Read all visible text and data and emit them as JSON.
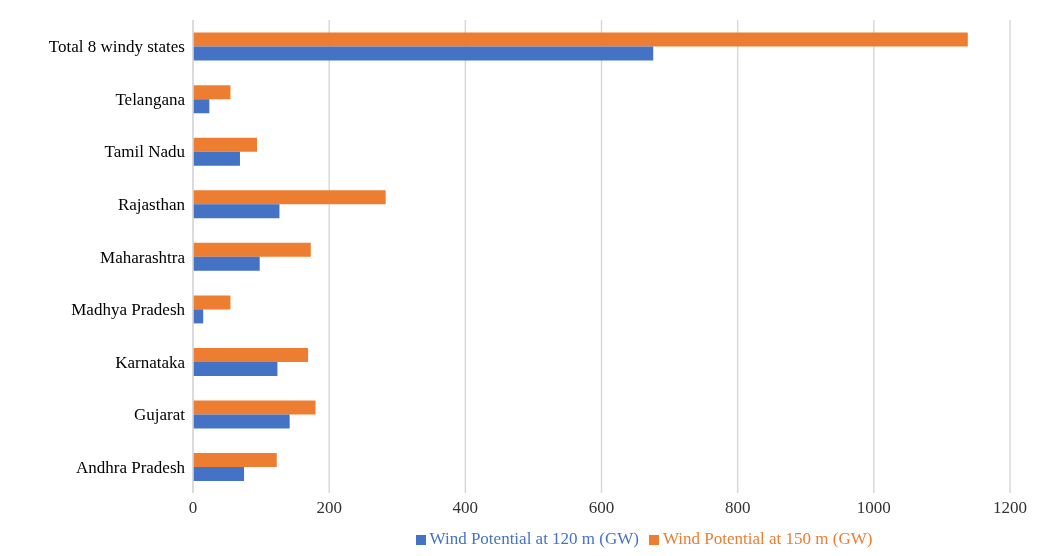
{
  "chart_data": {
    "type": "bar",
    "orientation": "horizontal",
    "categories": [
      "Total 8 windy states",
      "Telangana",
      "Tamil Nadu",
      "Rajasthan",
      "Maharashtra",
      "Madhya Pradesh",
      "Karnataka",
      "Gujarat",
      "Andhra Pradesh"
    ],
    "series": [
      {
        "name": "Wind Potential at 150 m (GW)",
        "color": "#ed7d31",
        "values": [
          1138,
          55,
          94,
          283,
          173,
          55,
          169,
          180,
          123
        ]
      },
      {
        "name": "Wind Potential at 120 m (GW)",
        "color": "#4472c4",
        "values": [
          676,
          24,
          69,
          127,
          98,
          15,
          124,
          142,
          75
        ]
      }
    ],
    "xlim": [
      0,
      1200
    ],
    "xticks": [
      0,
      200,
      400,
      600,
      800,
      1000,
      1200
    ],
    "grid": "x",
    "legend": "bottom"
  }
}
